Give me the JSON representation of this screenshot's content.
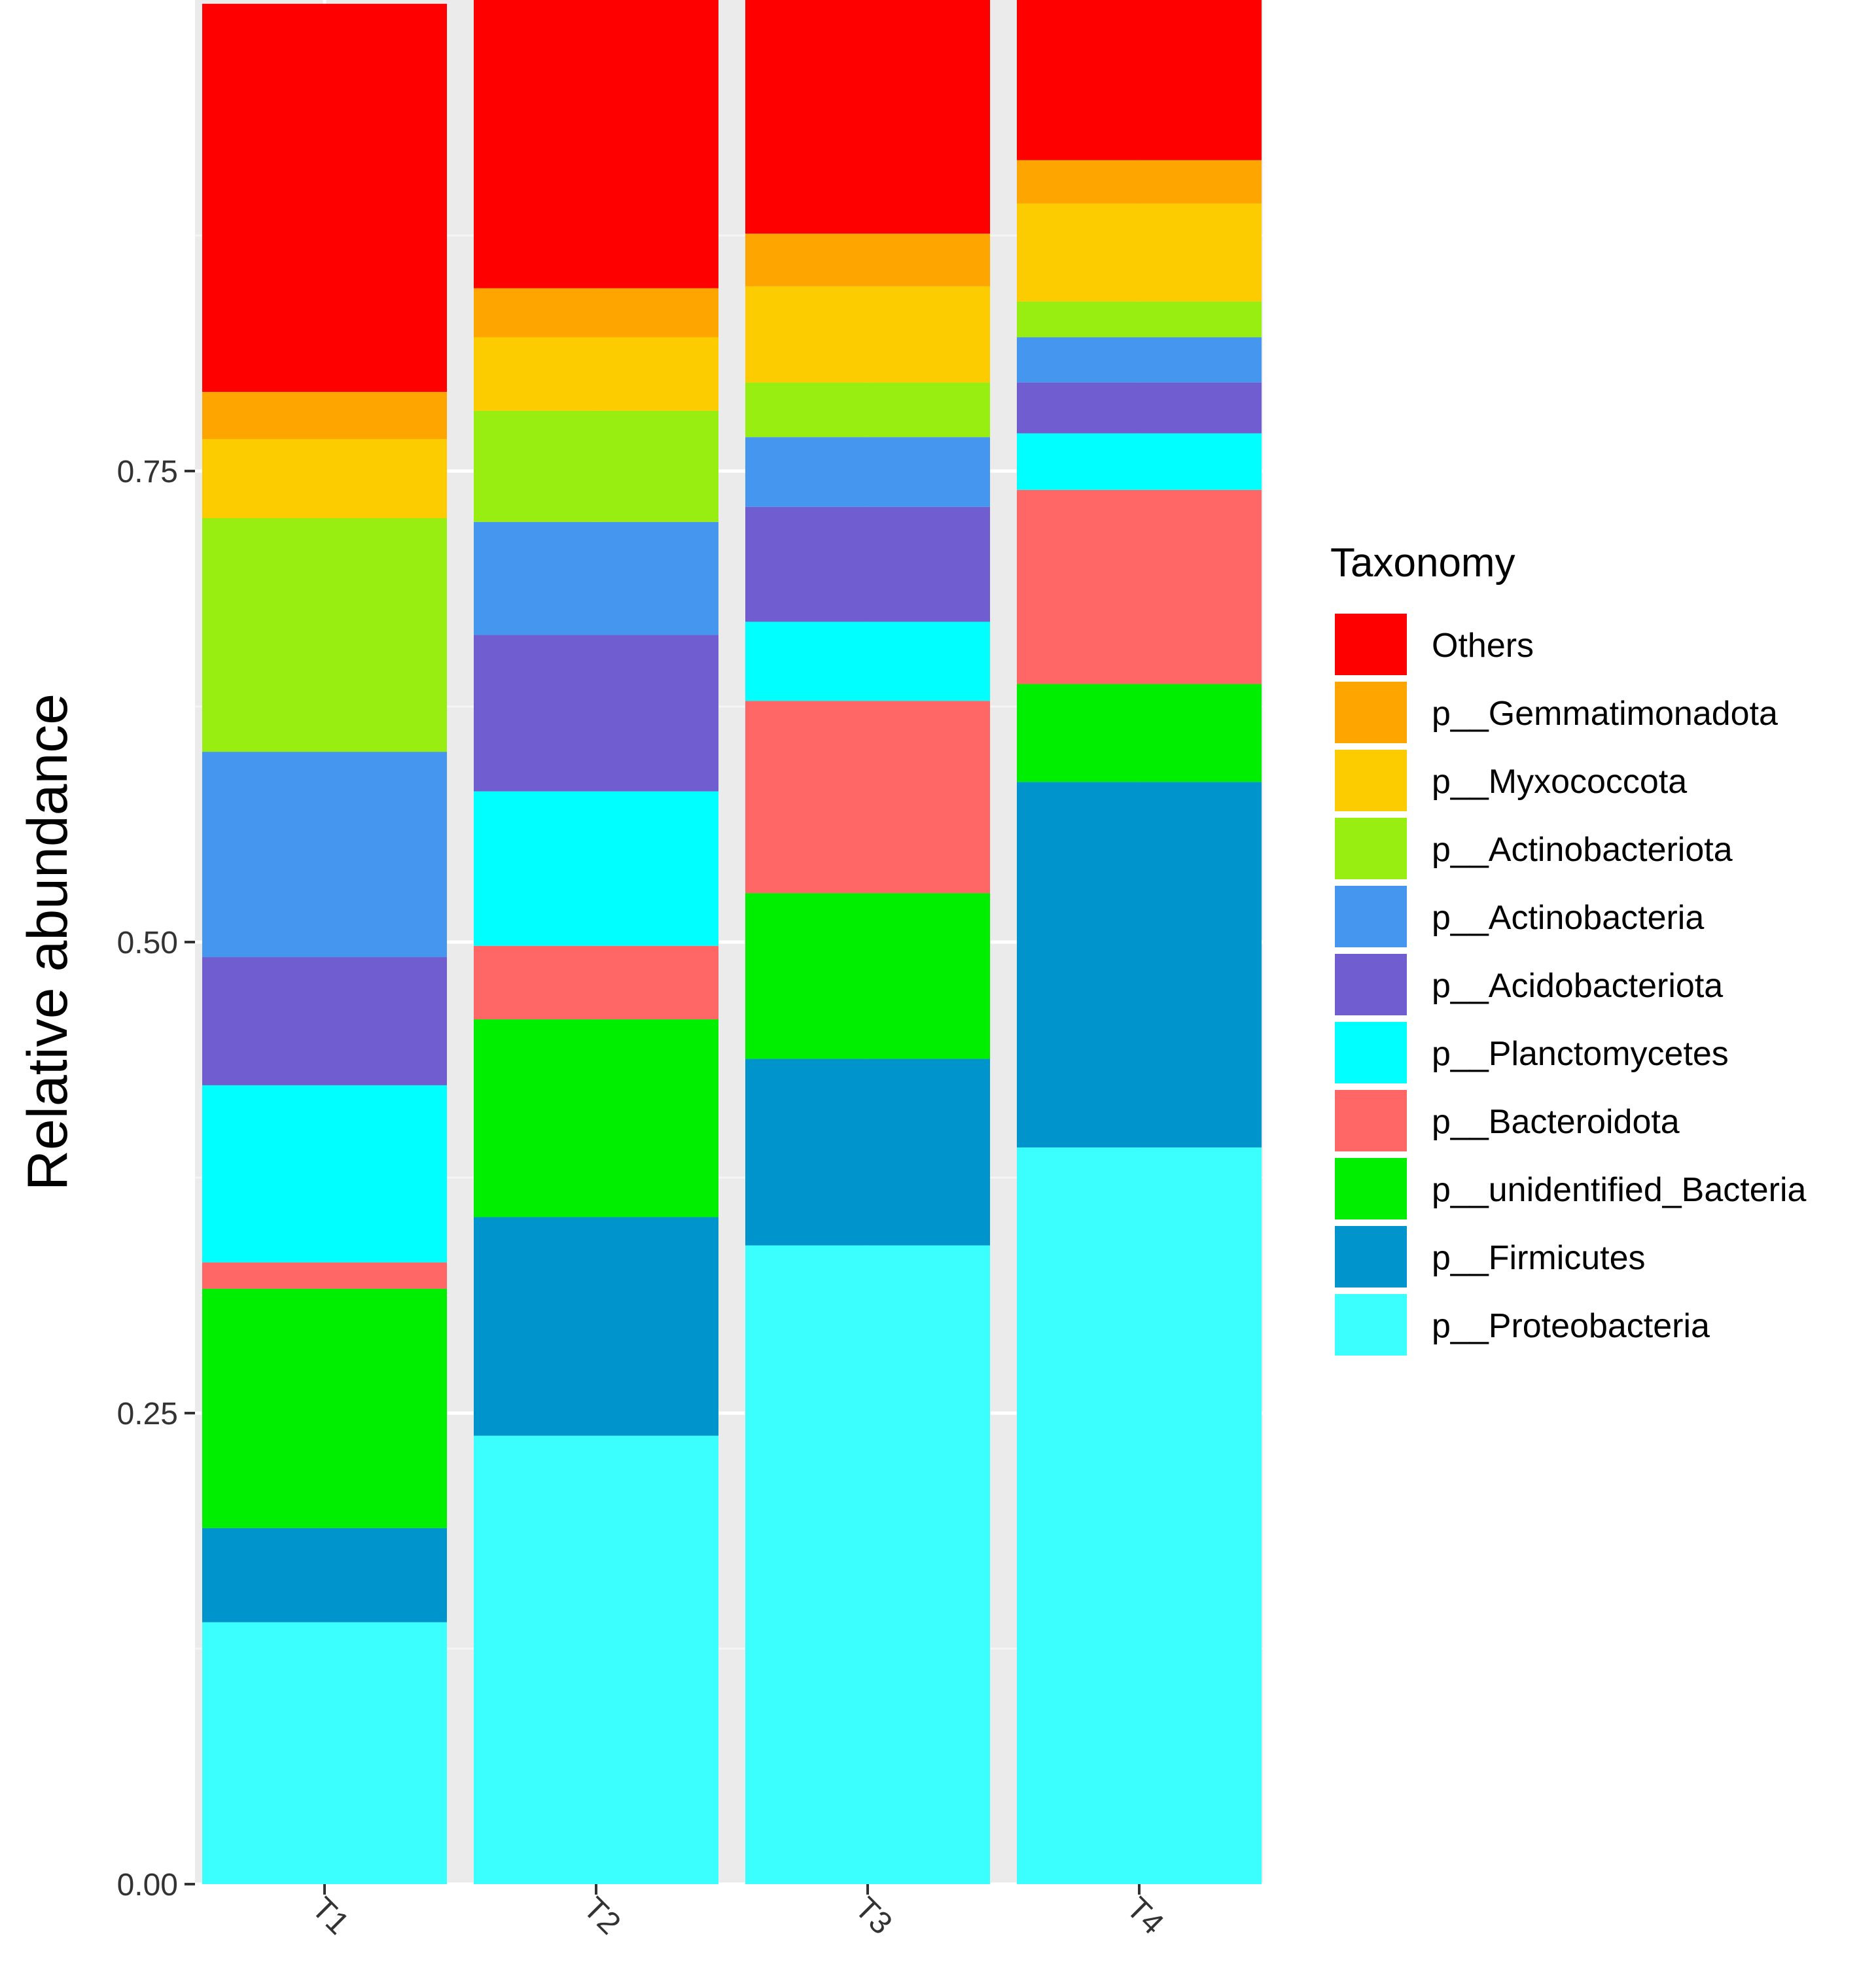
{
  "chart_data": {
    "type": "bar",
    "stacked": true,
    "ylabel": "Relative abundance",
    "xlabel": "",
    "ylim": [
      0,
      1
    ],
    "yticks": [
      "0.00",
      "0.25",
      "0.50",
      "0.75"
    ],
    "ytick_values": [
      0,
      0.25,
      0.5,
      0.75
    ],
    "categories": [
      "T1",
      "T2",
      "T3",
      "T4"
    ],
    "legend": {
      "title": "Taxonomy",
      "placement": "right"
    },
    "series": [
      {
        "name": "p__Proteobacteria",
        "color": "#3BFFFF",
        "values": [
          0.139,
          0.238,
          0.339,
          0.391
        ]
      },
      {
        "name": "p__Firmicutes",
        "color": "#0094CC",
        "values": [
          0.05,
          0.116,
          0.099,
          0.194
        ]
      },
      {
        "name": "p__unidentified_Bacteria",
        "color": "#00EE00",
        "values": [
          0.127,
          0.105,
          0.088,
          0.052
        ]
      },
      {
        "name": "p__Bacteroidota",
        "color": "#FF6666",
        "values": [
          0.014,
          0.039,
          0.102,
          0.103
        ]
      },
      {
        "name": "p__Planctomycetes",
        "color": "#00FFFF",
        "values": [
          0.094,
          0.082,
          0.042,
          0.03
        ]
      },
      {
        "name": "p__Acidobacteriota",
        "color": "#705ED0",
        "values": [
          0.068,
          0.083,
          0.061,
          0.027
        ]
      },
      {
        "name": "p__Actinobacteria",
        "color": "#4596EE",
        "values": [
          0.109,
          0.06,
          0.037,
          0.024
        ]
      },
      {
        "name": "p__Actinobacteriota",
        "color": "#99EE11",
        "values": [
          0.124,
          0.059,
          0.029,
          0.019
        ]
      },
      {
        "name": "p__Myxococcota",
        "color": "#FCCC00",
        "values": [
          0.042,
          0.039,
          0.051,
          0.052
        ]
      },
      {
        "name": "p__Gemmatimonadota",
        "color": "#FFA500",
        "values": [
          0.025,
          0.026,
          0.028,
          0.023
        ]
      },
      {
        "name": "Others",
        "color": "#FF0000",
        "values": [
          0.206,
          0.153,
          0.124,
          0.085
        ]
      }
    ]
  },
  "colors": {
    "panel_bg": "#EBEBEB",
    "grid_minor": "#F5F5F5",
    "axis": "#333333",
    "text": "#000000"
  }
}
